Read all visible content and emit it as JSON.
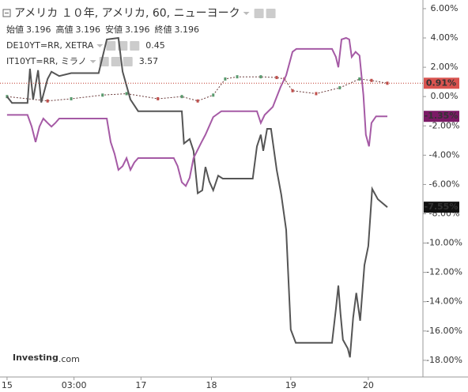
{
  "chart_data": {
    "type": "line",
    "title": "アメリカ １０年, アメリカ, 60, ニューヨーク",
    "ohlc": [
      {
        "label": "始値",
        "value": 3.196
      },
      {
        "label": "高値",
        "value": 3.196
      },
      {
        "label": "安値",
        "value": 3.196
      },
      {
        "label": "終値",
        "value": 3.196
      }
    ],
    "xlim": [
      -2,
      118
    ],
    "xticks": [
      {
        "value": 0,
        "label": "15"
      },
      {
        "value": 19,
        "label": "03:00"
      },
      {
        "value": 38,
        "label": "17"
      },
      {
        "value": 58,
        "label": "18"
      },
      {
        "value": 80.5,
        "label": "19"
      },
      {
        "value": 102.5,
        "label": "20"
      }
    ],
    "ylim": [
      -19.03,
      6.59
    ],
    "yticks": [
      {
        "value": 6,
        "label": "6.00%"
      },
      {
        "value": 4,
        "label": "4.00%"
      },
      {
        "value": 2,
        "label": "2.00%"
      },
      {
        "value": 0,
        "label": "0.00%"
      },
      {
        "value": -2,
        "label": "-2.00%"
      },
      {
        "value": -4,
        "label": "-4.00%"
      },
      {
        "value": -6,
        "label": "-6.00%"
      },
      {
        "value": -8,
        "label": "-8.00%"
      },
      {
        "value": -10,
        "label": "-10.00%"
      },
      {
        "value": -12,
        "label": "-12.00%"
      },
      {
        "value": -14,
        "label": "-14.00%"
      },
      {
        "value": -16,
        "label": "-16.00%"
      },
      {
        "value": -18,
        "label": "-18.00%"
      }
    ],
    "grid": false,
    "price_line": true,
    "price_line_color": "#c0392b",
    "series": [
      {
        "color": "#6b3b3b",
        "last_label": "0.91%",
        "label_color": "#d9534f",
        "x": [
          0,
          11.5,
          18.2,
          27.1,
          33.9,
          42.8,
          49.6,
          54.1,
          58.5,
          61.9,
          65.3,
          72.0,
          76.5,
          78.7,
          81.0,
          87.7,
          94.4,
          100.0,
          103.4,
          107.9
        ],
        "values": [
          0,
          -0.3,
          -0.15,
          0.1,
          0.2,
          -0.15,
          0,
          -0.3,
          0.1,
          1.2,
          1.35,
          1.35,
          1.3,
          1.2,
          0.4,
          0.2,
          0.6,
          1.2,
          1.1,
          0.91
        ]
      },
      {
        "name": "DE10YT=RR, XETRA",
        "quote": 0.45,
        "quote_color": "#333333",
        "color": "#555555",
        "last_label": "-7.55%",
        "label_color": "#111111",
        "x": [
          0,
          1.4,
          5.8,
          6.5,
          7.4,
          8.8,
          9.7,
          11.5,
          12.6,
          14.8,
          18.2,
          26.0,
          28.3,
          31.6,
          32.8,
          35.0,
          37.2,
          49.6,
          50.2,
          51.8,
          52.9,
          54.1,
          55.4,
          56.3,
          57.4,
          58.5,
          59.9,
          61.2,
          69.7,
          70.9,
          72.0,
          72.7,
          73.8,
          74.9,
          76.5,
          77.8,
          79.2,
          80.5,
          81.9,
          92.2,
          93.3,
          94.0,
          94.6,
          95.3,
          96.7,
          97.3,
          98.2,
          99.1,
          100.2,
          101.4,
          102.5,
          103.6,
          105.2,
          107.9
        ],
        "values": [
          0,
          -0.43,
          -0.43,
          1.9,
          -0.2,
          1.8,
          -0.4,
          1.2,
          1.7,
          1.4,
          1.6,
          1.6,
          3.9,
          4.0,
          1.7,
          -0.2,
          -1.0,
          -1.0,
          -3.2,
          -2.9,
          -3.7,
          -6.6,
          -6.4,
          -4.8,
          -5.8,
          -6.4,
          -5.4,
          -5.6,
          -5.6,
          -3.4,
          -2.6,
          -3.7,
          -2.2,
          -2.2,
          -5.0,
          -6.7,
          -9.1,
          -15.9,
          -16.8,
          -16.8,
          -14.5,
          -12.9,
          -14.8,
          -16.6,
          -17.2,
          -17.8,
          -15.1,
          -13.4,
          -15.3,
          -11.5,
          -10.2,
          -6.3,
          -7.0,
          -7.55
        ]
      },
      {
        "name": "IT10YT=RR, ミラノ",
        "quote": 3.57,
        "quote_color": "#9b3c8f",
        "color": "#a55aa5",
        "last_label": "-1.35%",
        "label_color": "#7b1a66",
        "x": [
          0,
          5.8,
          7.0,
          8.1,
          9.2,
          10.3,
          11.5,
          12.6,
          13.7,
          14.8,
          15.9,
          28.3,
          29.4,
          30.5,
          31.6,
          32.8,
          33.9,
          35.0,
          36.1,
          37.2,
          38.4,
          47.3,
          48.4,
          49.6,
          50.7,
          51.8,
          52.9,
          55.2,
          56.3,
          58.5,
          60.8,
          70.9,
          72.0,
          73.1,
          75.4,
          77.6,
          79.2,
          81.0,
          82.1,
          92.2,
          93.3,
          94.0,
          94.9,
          96.2,
          97.1,
          97.8,
          98.9,
          100.0,
          101.1,
          101.8,
          102.7,
          103.4,
          104.7,
          107.9
        ],
        "values": [
          -1.25,
          -1.25,
          -2.05,
          -3.1,
          -2.05,
          -1.5,
          -1.8,
          -2.05,
          -1.8,
          -1.5,
          -1.5,
          -1.5,
          -3.1,
          -3.9,
          -5.0,
          -4.75,
          -4.2,
          -5.0,
          -4.5,
          -4.2,
          -4.2,
          -4.2,
          -4.75,
          -5.85,
          -6.1,
          -5.55,
          -4.2,
          -3.1,
          -2.6,
          -1.4,
          -1.0,
          -1.0,
          -1.8,
          -1.25,
          -0.7,
          0.65,
          1.45,
          3.05,
          3.25,
          3.25,
          2.7,
          2.0,
          3.9,
          4.0,
          3.9,
          2.7,
          3.05,
          2.8,
          0.1,
          -2.6,
          -3.4,
          -1.8,
          -1.35,
          -1.35
        ]
      }
    ],
    "logo": [
      "Investing",
      ".com"
    ]
  }
}
